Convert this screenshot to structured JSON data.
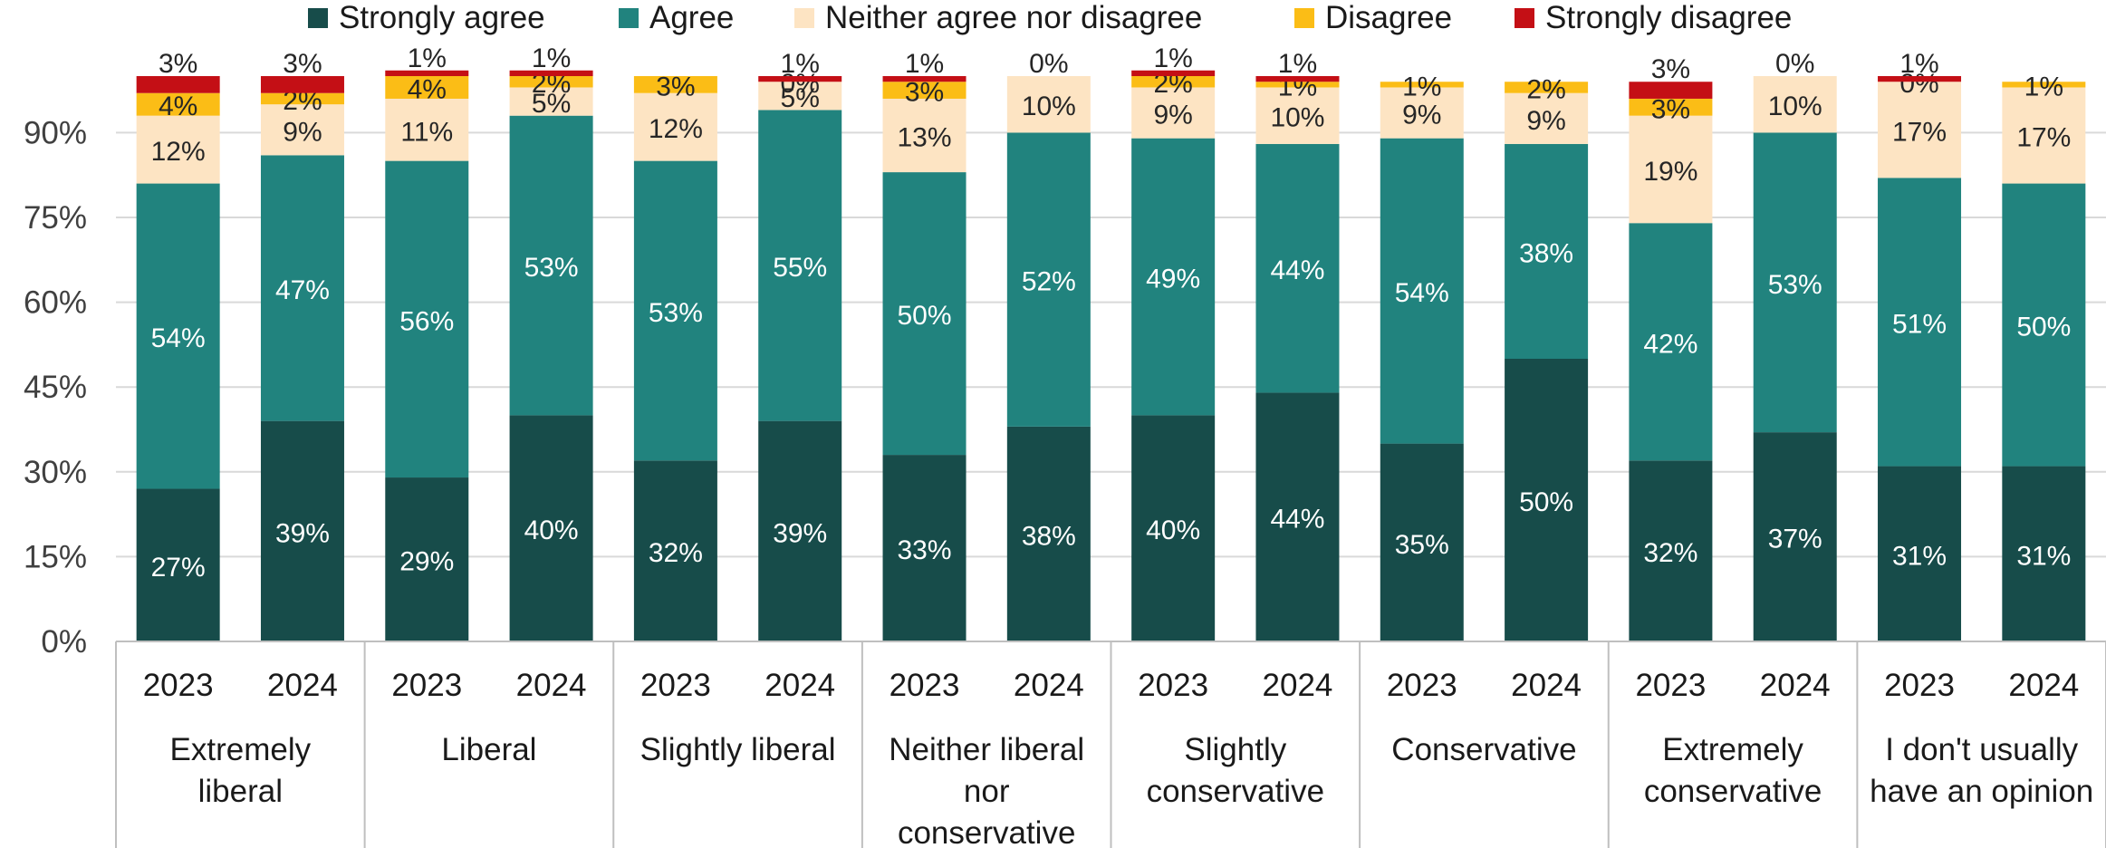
{
  "chart_data": {
    "type": "bar",
    "stacked": true,
    "ylim": [
      0,
      100
    ],
    "yticks": [
      "0%",
      "15%",
      "30%",
      "45%",
      "60%",
      "75%",
      "90%"
    ],
    "ytick_values": [
      0,
      15,
      30,
      45,
      60,
      75,
      90
    ],
    "grid": true,
    "legend_position": "top",
    "groups": [
      "Extremely liberal",
      "Liberal",
      "Slightly liberal",
      "Neither liberal nor conservative",
      "Slightly conservative",
      "Conservative",
      "Extremely conservative",
      "I don't usually have an opinion"
    ],
    "group_label_lines": [
      [
        "Extremely",
        "liberal"
      ],
      [
        "Liberal"
      ],
      [
        "Slightly liberal"
      ],
      [
        "Neither liberal",
        "nor",
        "conservative"
      ],
      [
        "Slightly",
        "conservative"
      ],
      [
        "Conservative"
      ],
      [
        "Extremely",
        "conservative"
      ],
      [
        "I don't usually",
        "have an opinion"
      ]
    ],
    "categories": [
      "2023",
      "2024",
      "2023",
      "2024",
      "2023",
      "2024",
      "2023",
      "2024",
      "2023",
      "2024",
      "2023",
      "2024",
      "2023",
      "2024",
      "2023",
      "2024"
    ],
    "series": [
      {
        "name": "Strongly agree",
        "color": "#174c4a",
        "values": [
          27,
          39,
          29,
          40,
          32,
          39,
          33,
          38,
          40,
          44,
          35,
          50,
          32,
          37,
          31,
          31
        ]
      },
      {
        "name": "Agree",
        "color": "#21837e",
        "values": [
          54,
          47,
          56,
          53,
          53,
          55,
          50,
          52,
          49,
          44,
          54,
          38,
          42,
          53,
          51,
          50
        ]
      },
      {
        "name": "Neither agree nor disagree",
        "color": "#fde4c3",
        "values": [
          12,
          9,
          11,
          5,
          12,
          5,
          13,
          10,
          9,
          10,
          9,
          9,
          19,
          10,
          17,
          17
        ]
      },
      {
        "name": "Disagree",
        "color": "#fbbd16",
        "values": [
          4,
          2,
          4,
          2,
          3,
          0,
          3,
          0,
          2,
          1,
          1,
          2,
          3,
          0,
          0,
          1
        ]
      },
      {
        "name": "Strongly disagree",
        "color": "#c40f15",
        "values": [
          3,
          3,
          1,
          1,
          0,
          1,
          1,
          0,
          1,
          1,
          0,
          0,
          3,
          0,
          1,
          0
        ]
      }
    ],
    "value_labels": [
      [
        "27%",
        "39%",
        "29%",
        "40%",
        "32%",
        "39%",
        "33%",
        "38%",
        "40%",
        "44%",
        "35%",
        "50%",
        "32%",
        "37%",
        "31%",
        "31%"
      ],
      [
        "54%",
        "47%",
        "56%",
        "53%",
        "53%",
        "55%",
        "50%",
        "52%",
        "49%",
        "44%",
        "54%",
        "38%",
        "42%",
        "53%",
        "51%",
        "50%"
      ],
      [
        "12%",
        "9%",
        "11%",
        "5%",
        "12%",
        "5%",
        "13%",
        "10%",
        "9%",
        "10%",
        "9%",
        "9%",
        "19%",
        "10%",
        "17%",
        "17%"
      ],
      [
        "4%",
        "2%",
        "4%",
        "2%",
        "3%",
        "0%",
        "3%",
        "",
        "2%",
        "1%",
        "1%",
        "2%",
        "3%",
        "",
        "0%",
        "1%"
      ],
      [
        "3%",
        "3%",
        "1%",
        "1%",
        "",
        "1%",
        "1%",
        "0%",
        "1%",
        "1%",
        "",
        "",
        "3%",
        "0%",
        "1%",
        ""
      ]
    ]
  }
}
